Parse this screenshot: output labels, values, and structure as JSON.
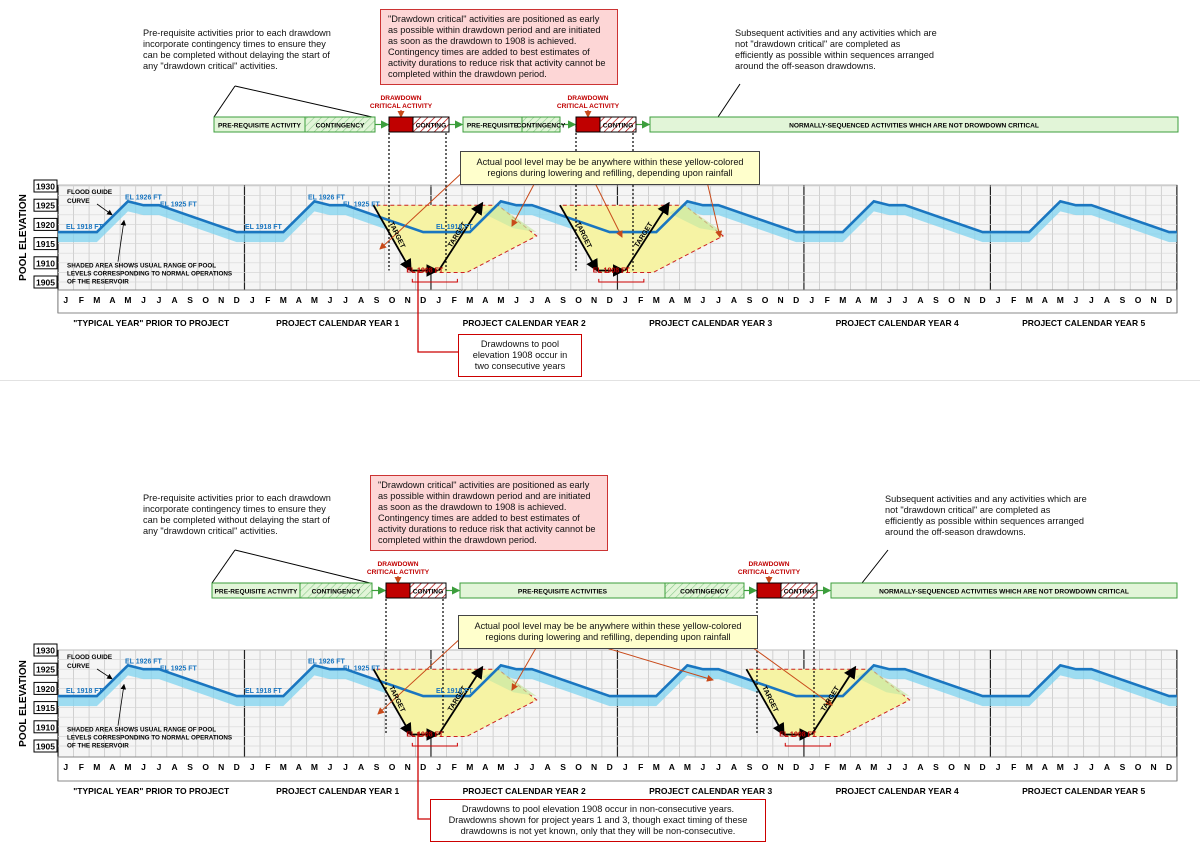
{
  "colors": {
    "curve": "#1a76c0",
    "band": "#7fd3ef",
    "yellow": "#f6f3a4",
    "green_fill": "#e2f5d8",
    "green_border": "#3c9e3c",
    "critical": "#c00000",
    "red_line": "#cc0000"
  },
  "shared": {
    "y_axis_title": "POOL ELEVATION",
    "y_ticks": [
      "1930",
      "1925",
      "1920",
      "1915",
      "1910",
      "1905"
    ],
    "months": [
      "J",
      "F",
      "M",
      "A",
      "M",
      "J",
      "J",
      "A",
      "S",
      "O",
      "N",
      "D"
    ],
    "year_labels": [
      "\"TYPICAL YEAR\" PRIOR TO PROJECT",
      "PROJECT CALENDAR YEAR 1",
      "PROJECT CALENDAR YEAR 2",
      "PROJECT CALENDAR YEAR 3",
      "PROJECT CALENDAR YEAR 4",
      "PROJECT CALENDAR YEAR 5"
    ],
    "flood_guide_label": "FLOOD GUIDE CURVE",
    "shaded_area_label": "SHADED AREA SHOWS USUAL RANGE OF POOL LEVELS CORRESPONDING TO NORMAL OPERATIONS OF THE RESERVOIR",
    "el_1918": "EL 1918 FT",
    "el_1926": "EL 1926 FT",
    "el_1925": "EL 1925 FT",
    "el_1908": "EL 1908 FT",
    "target": "TARGET",
    "critical_label_1": "DRAWDOWN",
    "critical_label_2": "CRITICAL ACTIVITY",
    "conting": "CONTING",
    "contingency": "CONTINGENCY",
    "prereq_activity": "PRE-REQUISITE ACTIVITY",
    "prereq_short": "PRE-REQUISITE",
    "prereq_activities": "PRE-REQUISITE ACTIVITIES",
    "normally_sequenced": "NORMALLY-SEQUENCED ACTIVITIES WHICH ARE NOT DROWDOWN CRITICAL",
    "callout_prereq": "Pre-requisite activities prior to each drawdown incorporate contingency times to ensure they can be completed without delaying the start of any \"drawdown critical\" activities.",
    "callout_prereq_b": "Pre-requisite activities prior to each drawdown incorporate contingency times to ensure they can be completed without delaying the start of any \"drawdown critical\" activities.",
    "callout_critical": "\"Drawdown critical\" activities are positioned as early as possible within drawdown period and are initiated as soon as the drawdown to 1908 is achieved. Contingency times are added to best estimates of activity durations to reduce risk that activity cannot be completed within the drawdown period.",
    "callout_subsequent": "Subsequent activities and any activities which are not \"drawdown critical\" are completed as efficiently as possible within sequences arranged around the off-season drawdowns.",
    "callout_yellow": "Actual pool level may be be anywhere within these yellow-colored regions during lowering and refilling, depending upon rainfall"
  },
  "panel_top": {
    "bottom_note": "Drawdowns to pool elevation 1908 occur in two consecutive years"
  },
  "panel_bottom": {
    "bottom_note": "Drawdowns to pool elevation 1908 occur in non-consecutive years. Drawdowns shown for project years 1 and 3, though exact timing of these drawdowns is not yet known, only that they will be non-consecutive."
  }
}
